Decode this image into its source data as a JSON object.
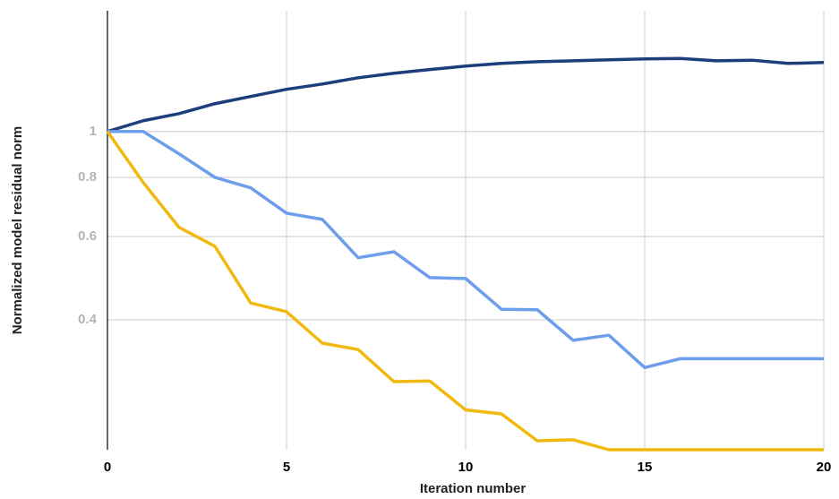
{
  "chart_data": {
    "type": "line",
    "log_y": true,
    "grid": true,
    "x_label": "Iteration number",
    "y_label": "Normalized model residual norm",
    "x": [
      0,
      1,
      2,
      3,
      4,
      5,
      6,
      7,
      8,
      9,
      10,
      11,
      12,
      13,
      14,
      15,
      16,
      17,
      18,
      19,
      20
    ],
    "xlim": [
      0,
      20
    ],
    "xticks": [
      0,
      5,
      10,
      15,
      20
    ],
    "ylim": [
      0.2125,
      1.8
    ],
    "yticks": [
      0.4,
      0.6,
      0.8,
      1
    ],
    "series": [
      {
        "color": "#1c3f7c",
        "values": [
          1,
          1.054,
          1.091,
          1.145,
          1.186,
          1.228,
          1.26,
          1.299,
          1.328,
          1.352,
          1.375,
          1.393,
          1.405,
          1.411,
          1.418,
          1.424,
          1.427,
          1.411,
          1.415,
          1.393,
          1.399
        ]
      },
      {
        "color": "#6d9eeb",
        "values": [
          1,
          1,
          0.897,
          0.8,
          0.76,
          0.672,
          0.652,
          0.541,
          0.557,
          0.491,
          0.489,
          0.421,
          0.42,
          0.362,
          0.371,
          0.317,
          0.331,
          0.331,
          0.331,
          0.331,
          0.331
        ]
      },
      {
        "color": "#f1b90f",
        "values": [
          1,
          0.78,
          0.627,
          0.572,
          0.434,
          0.416,
          0.357,
          0.346,
          0.296,
          0.297,
          0.258,
          0.253,
          0.222,
          0.223,
          0.2125,
          0.2125,
          0.2125,
          0.2125,
          0.2125,
          0.2125,
          0.2125
        ]
      }
    ]
  }
}
